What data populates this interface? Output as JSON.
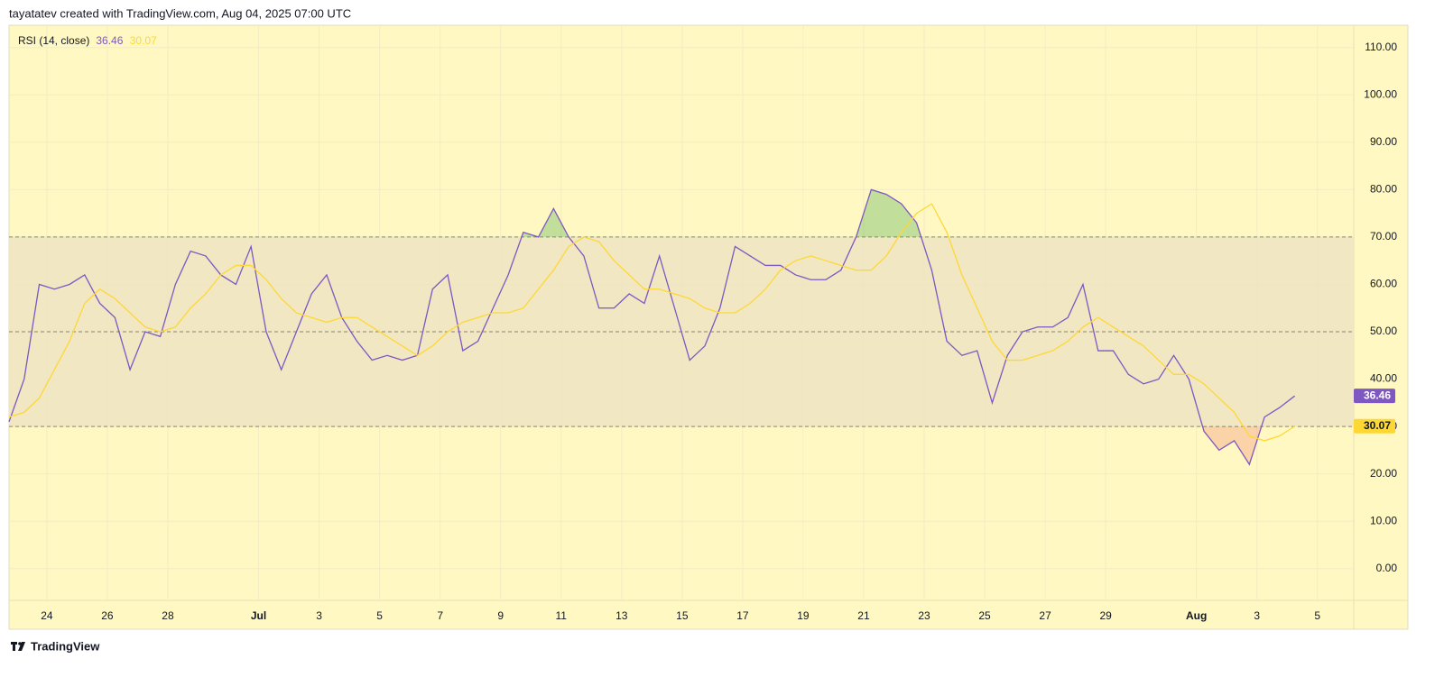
{
  "header": "tayatatev created with TradingView.com, Aug 04, 2025 07:00 UTC",
  "footer": "TradingView",
  "chart_data": {
    "type": "line",
    "indicator": "RSI (14, close)",
    "x": [
      -1.25,
      -0.75,
      -0.25,
      0.25,
      0.75,
      1.25,
      1.75,
      2.25,
      2.75,
      3.25,
      3.75,
      4.25,
      4.75,
      5.25,
      5.75,
      6.25,
      6.75,
      7.25,
      7.75,
      8.25,
      8.75,
      9.25,
      9.75,
      10.25,
      10.75,
      11.25,
      11.75,
      12.25,
      12.75,
      13.25,
      13.75,
      14.25,
      14.75,
      15.25,
      15.75,
      16.25,
      16.75,
      17.25,
      17.75,
      18.25,
      18.75,
      19.25,
      19.75,
      20.25,
      20.75,
      21.25,
      21.75,
      22.25,
      22.75,
      23.25,
      23.75,
      24.25,
      24.75,
      25.25,
      25.75,
      26.25,
      26.75,
      27.25,
      27.75,
      28.25,
      28.75,
      29.25,
      29.75,
      30.25,
      30.75,
      31.25,
      31.75,
      32.25,
      32.75,
      33.25,
      33.75,
      34.25,
      34.75,
      35.25,
      35.75,
      36.25,
      36.75,
      37.25,
      37.75,
      38.25,
      38.75,
      39.25,
      39.75,
      40.25,
      40.75,
      41.25
    ],
    "series": [
      {
        "color": "#7e57c2",
        "values": [
          31,
          40,
          60,
          59,
          60,
          62,
          56,
          53,
          42,
          50,
          49,
          60,
          67,
          66,
          62,
          60,
          68,
          50,
          42,
          50,
          58,
          62,
          53,
          48,
          44,
          45,
          44,
          45,
          59,
          62,
          46,
          48,
          55,
          62,
          71,
          70,
          76,
          70,
          66,
          55,
          55,
          58,
          56,
          66,
          55,
          44,
          47,
          55,
          68,
          66,
          64,
          64,
          62,
          61,
          61,
          63,
          70,
          80,
          79,
          77,
          73,
          63,
          48,
          45,
          46,
          35,
          45,
          50,
          51,
          51,
          53,
          60,
          46,
          46,
          41,
          39,
          40,
          45,
          40,
          29,
          25,
          27,
          22,
          32,
          34,
          36.46
        ]
      },
      {
        "color": "#fdd835",
        "values": [
          32,
          33,
          36,
          42,
          48,
          56,
          59,
          57,
          54,
          51,
          50,
          51,
          55,
          58,
          62,
          64,
          64,
          61,
          57,
          54,
          53,
          52,
          53,
          53,
          51,
          49,
          47,
          45,
          47,
          50,
          52,
          53,
          54,
          54,
          55,
          59,
          63,
          68,
          70,
          69,
          65,
          62,
          59,
          59,
          58,
          57,
          55,
          54,
          54,
          56,
          59,
          63,
          65,
          66,
          65,
          64,
          63,
          63,
          66,
          71,
          75,
          77,
          71,
          62,
          55,
          48,
          44,
          44,
          45,
          46,
          48,
          51,
          53,
          51,
          49,
          47,
          44,
          41,
          41,
          39,
          36,
          33,
          28,
          27,
          28,
          30.07
        ]
      }
    ],
    "bands": {
      "upper": 70,
      "middle": 50,
      "lower": 30
    },
    "xlim": [
      -1.25,
      43.2
    ],
    "xticks": [
      {
        "value": 0,
        "label": "24"
      },
      {
        "value": 2,
        "label": "26"
      },
      {
        "value": 4,
        "label": "28"
      },
      {
        "value": 7,
        "label": "Jul"
      },
      {
        "value": 9,
        "label": "3"
      },
      {
        "value": 11,
        "label": "5"
      },
      {
        "value": 13,
        "label": "7"
      },
      {
        "value": 15,
        "label": "9"
      },
      {
        "value": 17,
        "label": "11"
      },
      {
        "value": 19,
        "label": "13"
      },
      {
        "value": 21,
        "label": "15"
      },
      {
        "value": 23,
        "label": "17"
      },
      {
        "value": 25,
        "label": "19"
      },
      {
        "value": 27,
        "label": "21"
      },
      {
        "value": 29,
        "label": "23"
      },
      {
        "value": 31,
        "label": "25"
      },
      {
        "value": 33,
        "label": "27"
      },
      {
        "value": 35,
        "label": "29"
      },
      {
        "value": 38,
        "label": "Aug"
      },
      {
        "value": 40,
        "label": "3"
      },
      {
        "value": 42,
        "label": "5"
      }
    ],
    "ylim": [
      -6.7,
      114.7
    ],
    "yticks": [
      {
        "value": 0,
        "label": "0.00"
      },
      {
        "value": 10,
        "label": "10.00"
      },
      {
        "value": 20,
        "label": "20.00"
      },
      {
        "value": 30,
        "label": "30.00"
      },
      {
        "value": 40,
        "label": "40.00"
      },
      {
        "value": 50,
        "label": "50.00"
      },
      {
        "value": 60,
        "label": "60.00"
      },
      {
        "value": 70,
        "label": "70.00"
      },
      {
        "value": 80,
        "label": "80.00"
      },
      {
        "value": 90,
        "label": "90.00"
      },
      {
        "value": 100,
        "label": "100.00"
      },
      {
        "value": 110,
        "label": "110.00"
      }
    ],
    "grid": true
  }
}
